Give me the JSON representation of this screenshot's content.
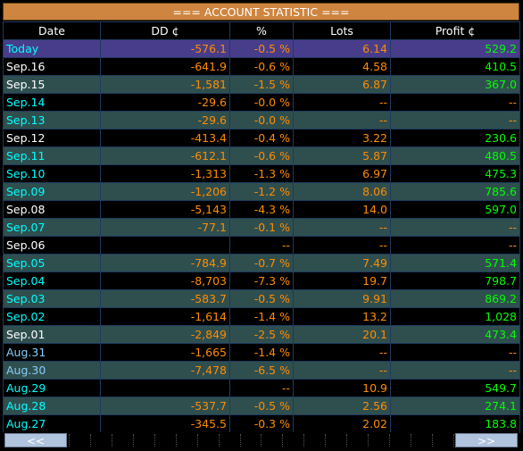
{
  "title": "=== ACCOUNT STATISTIC ===",
  "headers": {
    "date": "Date",
    "dd": "DD ¢",
    "pct": "%",
    "lots": "Lots",
    "profit": "Profit ¢"
  },
  "rows": [
    {
      "date": "Today",
      "dd": "-576.1",
      "pct": "-0.5 %",
      "lots": "6.14",
      "profit": "529.2",
      "date_color": "cyan",
      "style": "today"
    },
    {
      "date": "Sep.16",
      "dd": "-641.9",
      "pct": "-0.6 %",
      "lots": "4.58",
      "profit": "410.5",
      "date_color": "white",
      "style": "even"
    },
    {
      "date": "Sep.15",
      "dd": "-1,581",
      "pct": "-1.5 %",
      "lots": "6.87",
      "profit": "367.0",
      "date_color": "white",
      "style": "odd"
    },
    {
      "date": "Sep.14",
      "dd": "-29.6",
      "pct": "-0.0 %",
      "lots": "--",
      "profit": "--",
      "date_color": "cyan",
      "style": "even"
    },
    {
      "date": "Sep.13",
      "dd": "-29.6",
      "pct": "-0.0 %",
      "lots": "--",
      "profit": "--",
      "date_color": "cyan",
      "style": "odd"
    },
    {
      "date": "Sep.12",
      "dd": "-413.4",
      "pct": "-0.4 %",
      "lots": "3.22",
      "profit": "230.6",
      "date_color": "white",
      "style": "even"
    },
    {
      "date": "Sep.11",
      "dd": "-612.1",
      "pct": "-0.6 %",
      "lots": "5.87",
      "profit": "480.5",
      "date_color": "cyan",
      "style": "odd"
    },
    {
      "date": "Sep.10",
      "dd": "-1,313",
      "pct": "-1.3 %",
      "lots": "6.97",
      "profit": "475.3",
      "date_color": "cyan",
      "style": "even"
    },
    {
      "date": "Sep.09",
      "dd": "-1,206",
      "pct": "-1.2 %",
      "lots": "8.06",
      "profit": "785.6",
      "date_color": "cyan",
      "style": "odd"
    },
    {
      "date": "Sep.08",
      "dd": "-5,143",
      "pct": "-4.3 %",
      "lots": "14.0",
      "profit": "597.0",
      "date_color": "white",
      "style": "even"
    },
    {
      "date": "Sep.07",
      "dd": "-77.1",
      "pct": "-0.1 %",
      "lots": "--",
      "profit": "--",
      "date_color": "cyan",
      "style": "odd"
    },
    {
      "date": "Sep.06",
      "dd": "",
      "pct": "--",
      "lots": "--",
      "profit": "--",
      "date_color": "white",
      "style": "even"
    },
    {
      "date": "Sep.05",
      "dd": "-784.9",
      "pct": "-0.7 %",
      "lots": "7.49",
      "profit": "571.4",
      "date_color": "cyan",
      "style": "odd"
    },
    {
      "date": "Sep.04",
      "dd": "-8,703",
      "pct": "-7.3 %",
      "lots": "19.7",
      "profit": "798.7",
      "date_color": "cyan",
      "style": "even"
    },
    {
      "date": "Sep.03",
      "dd": "-583.7",
      "pct": "-0.5 %",
      "lots": "9.91",
      "profit": "869.2",
      "date_color": "cyan",
      "style": "odd"
    },
    {
      "date": "Sep.02",
      "dd": "-1,614",
      "pct": "-1.4 %",
      "lots": "13.2",
      "profit": "1,028",
      "date_color": "cyan",
      "style": "even"
    },
    {
      "date": "Sep.01",
      "dd": "-2,849",
      "pct": "-2.5 %",
      "lots": "20.1",
      "profit": "473.4",
      "date_color": "white",
      "style": "odd"
    },
    {
      "date": "Aug.31",
      "dd": "-1,665",
      "pct": "-1.4 %",
      "lots": "--",
      "profit": "--",
      "date_color": "azure",
      "style": "even"
    },
    {
      "date": "Aug.30",
      "dd": "-7,478",
      "pct": "-6.5 %",
      "lots": "--",
      "profit": "--",
      "date_color": "azure",
      "style": "odd"
    },
    {
      "date": "Aug.29",
      "dd": "",
      "pct": "--",
      "lots": "10.9",
      "profit": "549.7",
      "date_color": "cyan",
      "style": "even"
    },
    {
      "date": "Aug.28",
      "dd": "-537.7",
      "pct": "-0.5 %",
      "lots": "2.56",
      "profit": "274.1",
      "date_color": "cyan",
      "style": "odd"
    },
    {
      "date": "Aug.27",
      "dd": "-345.5",
      "pct": "-0.3 %",
      "lots": "2.02",
      "profit": "183.8",
      "date_color": "cyan",
      "style": "even"
    }
  ],
  "nav": {
    "prev_label": "<<",
    "next_label": ">>"
  },
  "colors": {
    "title_bg": "#cd853f",
    "today_bg": "#483d8b",
    "odd_bg": "#2f4f4f",
    "even_bg": "#000000",
    "value_orange": "#ff8c00",
    "profit_green": "#00ff00",
    "date_cyan": "#00ffff",
    "date_white": "#ffffff",
    "nav_bg": "#b0c4de"
  }
}
